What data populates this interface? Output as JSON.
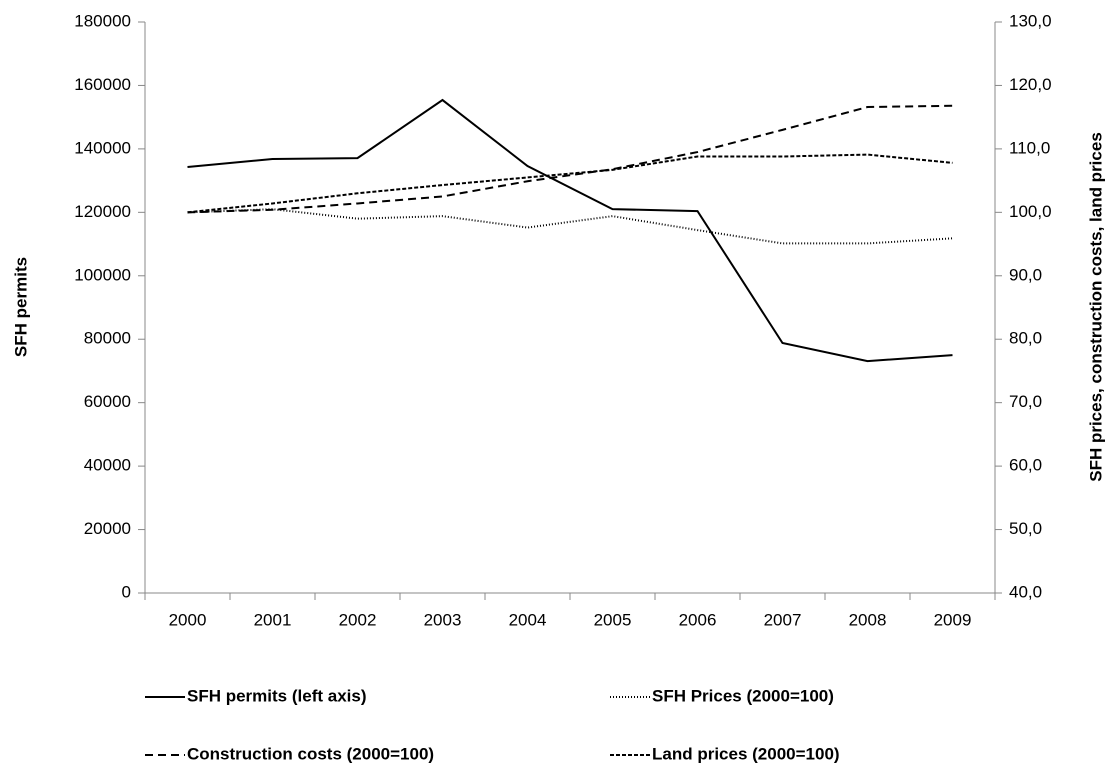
{
  "chart_data": {
    "type": "line",
    "y_label": "SFH permits",
    "y2_label": "SFH prices, construction costs, land prices",
    "categories": [
      "2000",
      "2001",
      "2002",
      "2003",
      "2004",
      "2005",
      "2006",
      "2007",
      "2008",
      "2009"
    ],
    "ylim": [
      0,
      180000
    ],
    "yticks": [
      0,
      20000,
      40000,
      60000,
      80000,
      100000,
      120000,
      140000,
      160000,
      180000
    ],
    "y2lim": [
      40,
      130
    ],
    "y2ticks": [
      {
        "value": 40,
        "label": "40,0"
      },
      {
        "value": 50,
        "label": "50,0"
      },
      {
        "value": 60,
        "label": "60,0"
      },
      {
        "value": 70,
        "label": "70,0"
      },
      {
        "value": 80,
        "label": "80,0"
      },
      {
        "value": 90,
        "label": "90,0"
      },
      {
        "value": 100,
        "label": "100,0"
      },
      {
        "value": 110,
        "label": "110,0"
      },
      {
        "value": 120,
        "label": "120,0"
      },
      {
        "value": 130,
        "label": "130,0"
      }
    ],
    "grid": false,
    "series": [
      {
        "name": "SFH permits (left axis)",
        "color": "#000000",
        "dash": "none",
        "axis": "y",
        "values": [
          134300,
          136800,
          137100,
          155400,
          134600,
          121000,
          120400,
          78800,
          73100,
          75000
        ]
      },
      {
        "name": "SFH Prices (2000=100)",
        "color": "#000000",
        "dash": "1 2",
        "axis": "y2",
        "values": [
          100,
          100.5,
          99,
          99.4,
          97.6,
          99.4,
          97.2,
          95.1,
          95.1,
          95.9
        ]
      },
      {
        "name": "Construction costs (2000=100)",
        "color": "#000000",
        "dash": "8 5",
        "axis": "y2",
        "values": [
          100,
          100.4,
          101.4,
          102.5,
          104.9,
          106.8,
          109.5,
          113,
          116.6,
          116.8
        ]
      },
      {
        "name": "Land prices (2000=100)",
        "color": "#000000",
        "dash": "4 2",
        "axis": "y2",
        "values": [
          100,
          101.4,
          103,
          104.3,
          105.5,
          106.7,
          108.8,
          108.8,
          109.1,
          107.8
        ]
      }
    ]
  }
}
